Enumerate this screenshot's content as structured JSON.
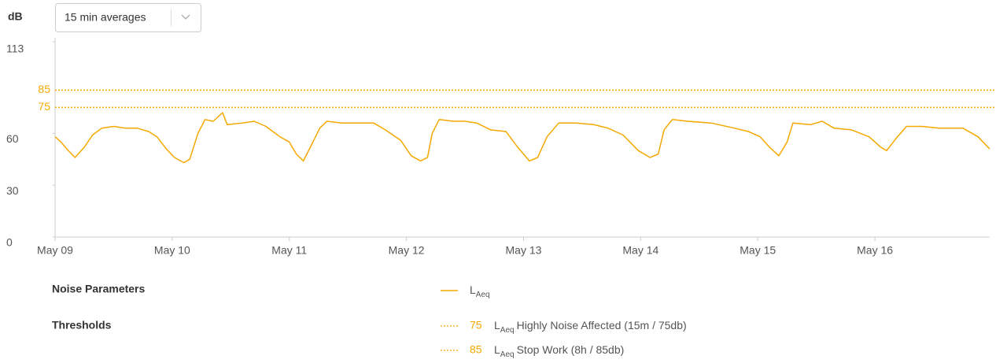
{
  "header": {
    "dropdown": "15 min averages"
  },
  "chart_data": {
    "type": "line",
    "y_label": "dB",
    "x": [
      0,
      0.05,
      0.1,
      0.17,
      0.25,
      0.32,
      0.4,
      0.5,
      0.6,
      0.7,
      0.8,
      0.87,
      0.95,
      1.02,
      1.1,
      1.15,
      1.22,
      1.28,
      1.35,
      1.43,
      1.47,
      1.6,
      1.7,
      1.8,
      1.92,
      2.0,
      2.06,
      2.12,
      2.18,
      2.26,
      2.32,
      2.45,
      2.6,
      2.72,
      2.82,
      2.95,
      3.04,
      3.12,
      3.18,
      3.22,
      3.28,
      3.4,
      3.5,
      3.6,
      3.72,
      3.85,
      3.95,
      4.05,
      4.12,
      4.2,
      4.3,
      4.45,
      4.6,
      4.72,
      4.85,
      4.98,
      5.08,
      5.15,
      5.2,
      5.27,
      5.4,
      5.6,
      5.8,
      5.92,
      6.02,
      6.1,
      6.18,
      6.25,
      6.3,
      6.45,
      6.55,
      6.65,
      6.8,
      6.95,
      7.05,
      7.1,
      7.18,
      7.27,
      7.4,
      7.55,
      7.75,
      7.88,
      7.98
    ],
    "series": [
      {
        "name": "L",
        "name_subscript": "Aeq",
        "color": "#f5a800",
        "values": [
          58,
          55,
          51,
          46,
          52,
          59,
          63,
          64,
          63,
          63,
          61,
          58,
          51,
          46,
          43,
          45,
          60,
          68,
          67,
          72,
          65,
          66,
          67,
          64,
          58,
          55,
          48,
          44,
          52,
          63,
          67,
          66,
          66,
          66,
          62,
          56,
          47,
          44,
          46,
          60,
          68,
          67,
          67,
          66,
          62,
          61,
          52,
          44,
          46,
          58,
          66,
          66,
          65,
          63,
          59,
          50,
          46,
          48,
          62,
          68,
          67,
          66,
          63,
          61,
          58,
          52,
          47,
          55,
          66,
          65,
          67,
          63,
          62,
          58,
          52,
          50,
          57,
          64,
          64,
          63,
          63,
          58,
          51
        ]
      }
    ],
    "xlim": [
      0,
      7.98
    ],
    "xticks": [
      {
        "value": 0,
        "label": "May 09"
      },
      {
        "value": 1,
        "label": "May 10"
      },
      {
        "value": 2,
        "label": "May 11"
      },
      {
        "value": 3,
        "label": "May 12"
      },
      {
        "value": 4,
        "label": "May 13"
      },
      {
        "value": 5,
        "label": "May 14"
      },
      {
        "value": 6,
        "label": "May 15"
      },
      {
        "value": 7,
        "label": "May 16"
      }
    ],
    "ylim": [
      0,
      113
    ],
    "yticks": [
      0,
      30,
      60,
      113
    ],
    "thresholds": [
      {
        "value": 75,
        "label": "Highly Noise Affected (15m / 75db)"
      },
      {
        "value": 85,
        "label": "Stop Work (8h / 85db)"
      }
    ],
    "threshold_color": "#f5a800",
    "legend": {
      "parameters_heading": "Noise Parameters",
      "thresholds_heading": "Thresholds"
    }
  }
}
